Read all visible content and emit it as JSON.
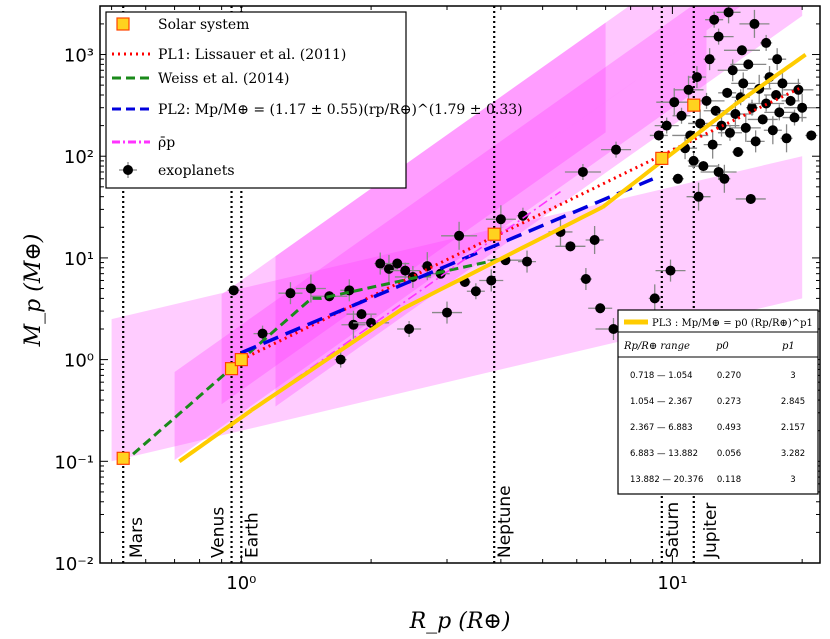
{
  "chart_data": {
    "type": "scatter",
    "title": "",
    "xlabel": "R_p (R⊕)",
    "ylabel": "M_p (M⊕)",
    "xscale": "log",
    "yscale": "log",
    "xlim": [
      0.47,
      22
    ],
    "ylim": [
      0.01,
      3000
    ],
    "x_tick_labels": [
      {
        "value": 1,
        "label": "10⁰"
      },
      {
        "value": 10,
        "label": "10¹"
      }
    ],
    "y_tick_labels": [
      {
        "value": 0.01,
        "label": "10⁻²"
      },
      {
        "value": 0.1,
        "label": "10⁻¹"
      },
      {
        "value": 1,
        "label": "10⁰"
      },
      {
        "value": 10,
        "label": "10¹"
      },
      {
        "value": 100,
        "label": "10²"
      },
      {
        "value": 1000,
        "label": "10³"
      }
    ],
    "legend_position": "top-left",
    "legend": [
      {
        "label": "Solar system",
        "marker": "square",
        "color": "#ffd21f"
      },
      {
        "label": "PL1: Lissauer et al. (2011)",
        "style": "dotted",
        "color": "#ff0000"
      },
      {
        "label": "Weiss et al. (2014)",
        "style": "dashed",
        "color": "#1a8a1a"
      },
      {
        "label": "PL2: Mp/M⊕ = (1.17 ± 0.55)(rp/R⊕)^(1.79 ± 0.33)",
        "style": "dashed",
        "color": "#0000dd"
      },
      {
        "label": "ρ̄p",
        "style": "dashdot",
        "color": "#ff33ff"
      },
      {
        "label": "exoplanets",
        "marker": "circle",
        "color": "#000000"
      }
    ],
    "solar_system": [
      {
        "name": "Mars",
        "radius": 0.532,
        "mass": 0.107
      },
      {
        "name": "Venus",
        "radius": 0.949,
        "mass": 0.815
      },
      {
        "name": "Earth",
        "radius": 1.0,
        "mass": 1.0
      },
      {
        "name": "Neptune",
        "radius": 3.86,
        "mass": 17.1
      },
      {
        "name": "Saturn",
        "radius": 9.45,
        "mass": 95.2
      },
      {
        "name": "Jupiter",
        "radius": 11.21,
        "mass": 317.8
      }
    ],
    "exoplanets": [
      {
        "r": 0.96,
        "m": 4.8
      },
      {
        "r": 1.12,
        "m": 1.8
      },
      {
        "r": 1.3,
        "m": 4.5
      },
      {
        "r": 1.45,
        "m": 5.0
      },
      {
        "r": 1.6,
        "m": 4.2
      },
      {
        "r": 1.7,
        "m": 1.0
      },
      {
        "r": 1.78,
        "m": 4.8
      },
      {
        "r": 1.82,
        "m": 2.2
      },
      {
        "r": 1.9,
        "m": 2.8
      },
      {
        "r": 2.0,
        "m": 2.3
      },
      {
        "r": 2.1,
        "m": 8.8
      },
      {
        "r": 2.2,
        "m": 7.8
      },
      {
        "r": 2.3,
        "m": 8.8
      },
      {
        "r": 2.4,
        "m": 7.5
      },
      {
        "r": 2.5,
        "m": 6.5
      },
      {
        "r": 2.7,
        "m": 8.3
      },
      {
        "r": 2.9,
        "m": 7.0
      },
      {
        "r": 2.45,
        "m": 2.0
      },
      {
        "r": 3.0,
        "m": 2.9
      },
      {
        "r": 3.2,
        "m": 16.5
      },
      {
        "r": 3.3,
        "m": 5.8
      },
      {
        "r": 3.5,
        "m": 4.7
      },
      {
        "r": 3.8,
        "m": 6.0
      },
      {
        "r": 4.0,
        "m": 24.0
      },
      {
        "r": 4.1,
        "m": 9.5
      },
      {
        "r": 4.5,
        "m": 26.0
      },
      {
        "r": 4.6,
        "m": 9.2
      },
      {
        "r": 5.5,
        "m": 18.0
      },
      {
        "r": 5.8,
        "m": 13.0
      },
      {
        "r": 6.2,
        "m": 70.0
      },
      {
        "r": 6.3,
        "m": 6.2
      },
      {
        "r": 6.6,
        "m": 15.0
      },
      {
        "r": 6.8,
        "m": 3.2
      },
      {
        "r": 7.4,
        "m": 116.0
      },
      {
        "r": 7.3,
        "m": 2.0
      },
      {
        "r": 9.1,
        "m": 4.0
      },
      {
        "r": 9.3,
        "m": 160.0
      },
      {
        "r": 9.7,
        "m": 200.0
      },
      {
        "r": 9.9,
        "m": 7.5
      },
      {
        "r": 10.1,
        "m": 340.0
      },
      {
        "r": 10.3,
        "m": 60.0
      },
      {
        "r": 10.5,
        "m": 250.0
      },
      {
        "r": 10.7,
        "m": 120.0
      },
      {
        "r": 10.9,
        "m": 450.0
      },
      {
        "r": 11.0,
        "m": 160.0
      },
      {
        "r": 11.2,
        "m": 90.0
      },
      {
        "r": 11.4,
        "m": 600.0
      },
      {
        "r": 11.6,
        "m": 210.0
      },
      {
        "r": 11.8,
        "m": 80.0
      },
      {
        "r": 12.0,
        "m": 350.0
      },
      {
        "r": 12.2,
        "m": 900.0
      },
      {
        "r": 12.4,
        "m": 130.0
      },
      {
        "r": 12.6,
        "m": 280.0
      },
      {
        "r": 12.8,
        "m": 1500.0
      },
      {
        "r": 13.0,
        "m": 200.0
      },
      {
        "r": 13.2,
        "m": 60.0
      },
      {
        "r": 13.4,
        "m": 420.0
      },
      {
        "r": 13.6,
        "m": 170.0
      },
      {
        "r": 13.8,
        "m": 700.0
      },
      {
        "r": 14.0,
        "m": 260.0
      },
      {
        "r": 14.2,
        "m": 110.0
      },
      {
        "r": 14.4,
        "m": 380.0
      },
      {
        "r": 14.6,
        "m": 520.0
      },
      {
        "r": 14.8,
        "m": 190.0
      },
      {
        "r": 15.0,
        "m": 800.0
      },
      {
        "r": 15.3,
        "m": 300.0
      },
      {
        "r": 15.6,
        "m": 140.0
      },
      {
        "r": 15.9,
        "m": 460.0
      },
      {
        "r": 16.2,
        "m": 230.0
      },
      {
        "r": 16.5,
        "m": 330.0
      },
      {
        "r": 16.8,
        "m": 600.0
      },
      {
        "r": 17.1,
        "m": 180.0
      },
      {
        "r": 17.4,
        "m": 400.0
      },
      {
        "r": 17.7,
        "m": 270.0
      },
      {
        "r": 18.0,
        "m": 520.0
      },
      {
        "r": 18.4,
        "m": 150.0
      },
      {
        "r": 18.8,
        "m": 350.0
      },
      {
        "r": 19.2,
        "m": 240.0
      },
      {
        "r": 19.6,
        "m": 450.0
      },
      {
        "r": 20.0,
        "m": 300.0
      },
      {
        "r": 21.0,
        "m": 160.0
      },
      {
        "r": 12.5,
        "m": 2200.0
      },
      {
        "r": 13.5,
        "m": 2600.0
      },
      {
        "r": 15.5,
        "m": 2000.0
      },
      {
        "r": 14.5,
        "m": 1100.0
      },
      {
        "r": 16.5,
        "m": 1300.0
      },
      {
        "r": 17.5,
        "m": 900.0
      },
      {
        "r": 11.5,
        "m": 40.0
      },
      {
        "r": 15.2,
        "m": 38.0
      },
      {
        "r": 12.8,
        "m": 70.0
      }
    ],
    "pl3_segments": [
      {
        "range": "0.718 — 1.054",
        "r0": 0.718,
        "r1": 1.054,
        "p0": 0.27,
        "p1": 3.0
      },
      {
        "range": "1.054 — 2.367",
        "r0": 1.054,
        "r1": 2.367,
        "p0": 0.273,
        "p1": 2.845
      },
      {
        "range": "2.367 — 6.883",
        "r0": 2.367,
        "r1": 6.883,
        "p0": 0.493,
        "p1": 2.157
      },
      {
        "range": "6.883 — 13.882",
        "r0": 6.883,
        "r1": 13.882,
        "p0": 0.056,
        "p1": 3.282
      },
      {
        "range": "13.882 — 20.376",
        "r0": 13.882,
        "r1": 20.376,
        "p0": 0.118,
        "p1": 3.0
      }
    ],
    "table_title": "PL3 :  Mp/M⊕ = p0 (Rp/R⊕)^p1",
    "table_headers": [
      "Rp/R⊕ range",
      "p0",
      "p1"
    ],
    "table_rows": [
      [
        "0.718 — 1.054",
        "0.270",
        "3"
      ],
      [
        "1.054 — 2.367",
        "0.273",
        "2.845"
      ],
      [
        "2.367 — 6.883",
        "0.493",
        "2.157"
      ],
      [
        "6.883 — 13.882",
        "0.056",
        "3.282"
      ],
      [
        "13.882 — 20.376",
        "0.118",
        "3"
      ]
    ],
    "colors": {
      "solar": "#ffd21f",
      "solar_edge": "#ff4400",
      "pl1": "#ff0000",
      "weiss": "#1a8a1a",
      "pl2": "#0000dd",
      "rho": "#ff33ff",
      "pl3": "#ffcc00",
      "band": "#ff33ff"
    }
  }
}
